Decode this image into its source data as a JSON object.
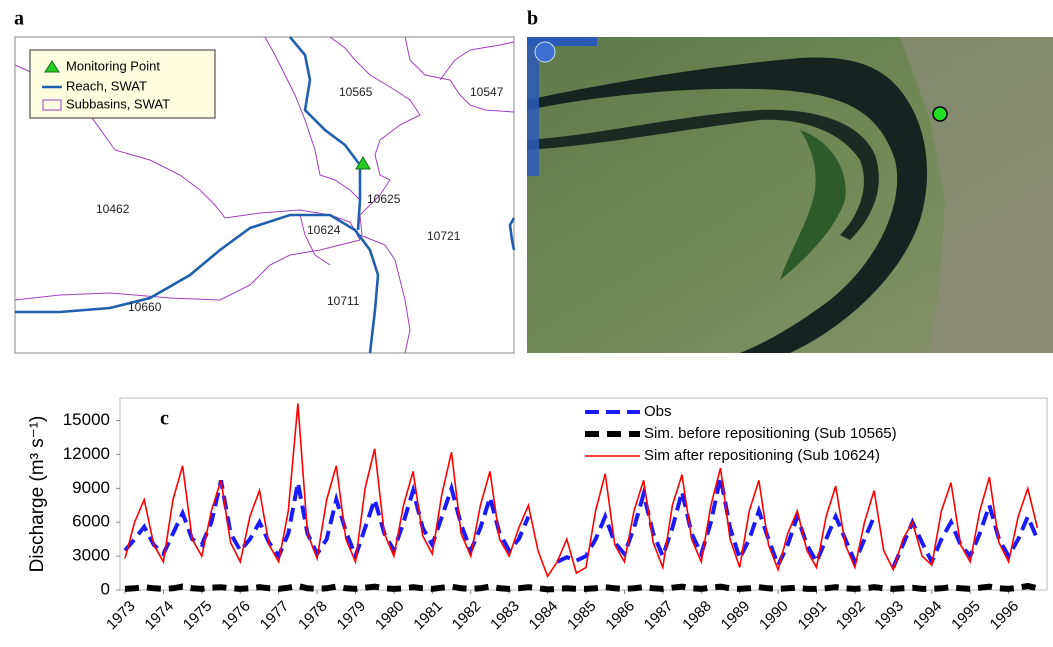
{
  "panel_labels": [
    "a",
    "b",
    "c"
  ],
  "map": {
    "legend": [
      "Monitoring Point",
      "Reach, SWAT",
      "Subbasins, SWAT"
    ],
    "subbasins": [
      "10565",
      "10547",
      "10462",
      "10625",
      "10624",
      "10721",
      "10660",
      "10711"
    ]
  },
  "chart_data": {
    "type": "line",
    "y_label": "Discharge (m³ s⁻¹)",
    "xlim": [
      1973,
      1997
    ],
    "xticks": [
      1973,
      1974,
      1975,
      1976,
      1977,
      1978,
      1979,
      1980,
      1981,
      1982,
      1983,
      1984,
      1985,
      1986,
      1987,
      1988,
      1989,
      1990,
      1991,
      1992,
      1993,
      1994,
      1995,
      1996
    ],
    "ylim": [
      0,
      17000
    ],
    "yticks": [
      0,
      3000,
      6000,
      9000,
      12000,
      15000
    ],
    "x": [
      1973,
      1973.25,
      1973.5,
      1973.75,
      1974,
      1974.25,
      1974.5,
      1974.75,
      1975,
      1975.25,
      1975.5,
      1975.75,
      1976,
      1976.25,
      1976.5,
      1976.75,
      1977,
      1977.25,
      1977.5,
      1977.75,
      1978,
      1978.25,
      1978.5,
      1978.75,
      1979,
      1979.25,
      1979.5,
      1979.75,
      1980,
      1980.25,
      1980.5,
      1980.75,
      1981,
      1981.25,
      1981.5,
      1981.75,
      1982,
      1982.25,
      1982.5,
      1982.75,
      1983,
      1983.25,
      1983.5,
      1983.75,
      1984,
      1984.25,
      1984.5,
      1984.75,
      1985,
      1985.25,
      1985.5,
      1985.75,
      1986,
      1986.25,
      1986.5,
      1986.75,
      1987,
      1987.25,
      1987.5,
      1987.75,
      1988,
      1988.25,
      1988.5,
      1988.75,
      1989,
      1989.25,
      1989.5,
      1989.75,
      1990,
      1990.25,
      1990.5,
      1990.75,
      1991,
      1991.25,
      1991.5,
      1991.75,
      1992,
      1992.25,
      1992.5,
      1992.75,
      1993,
      1993.25,
      1993.5,
      1993.75,
      1994,
      1994.25,
      1994.5,
      1994.75,
      1995,
      1995.25,
      1995.5,
      1995.75,
      1996,
      1996.25,
      1996.5,
      1996.75
    ],
    "series": [
      {
        "name": "Obs",
        "color": "#1a1aff",
        "dash": "dashed",
        "values": [
          3500,
          4500,
          5600,
          4000,
          3200,
          5000,
          6800,
          4500,
          4000,
          6000,
          9700,
          5000,
          3500,
          4500,
          6000,
          4200,
          3000,
          5000,
          9500,
          5000,
          3200,
          4500,
          8000,
          5200,
          3000,
          5500,
          8000,
          5000,
          3500,
          6000,
          8800,
          5500,
          4000,
          6500,
          9000,
          5800,
          3500,
          5500,
          8200,
          5000,
          3500,
          4500,
          6500,
          null,
          null,
          2500,
          2900,
          2600,
          3000,
          4500,
          6500,
          4200,
          3200,
          5500,
          8500,
          5000,
          3000,
          5500,
          8700,
          5000,
          3200,
          6000,
          10000,
          5500,
          2800,
          4500,
          7000,
          4500,
          2200,
          4000,
          6500,
          4000,
          2500,
          4500,
          6500,
          4500,
          2500,
          4500,
          6500,
          null,
          2000,
          4000,
          6000,
          4200,
          2500,
          4500,
          6000,
          4000,
          3000,
          5000,
          7500,
          4500,
          3000,
          4500,
          6500,
          4500
        ]
      },
      {
        "name": "Sim. before repositioning (Sub 10565)",
        "color": "#000000",
        "dash": "dashed",
        "values": [
          100,
          150,
          250,
          150,
          100,
          150,
          300,
          150,
          100,
          200,
          250,
          150,
          100,
          150,
          250,
          150,
          100,
          200,
          350,
          150,
          100,
          150,
          300,
          150,
          100,
          200,
          300,
          150,
          100,
          150,
          250,
          150,
          100,
          200,
          300,
          150,
          100,
          150,
          300,
          150,
          100,
          150,
          250,
          150,
          50,
          100,
          150,
          100,
          100,
          150,
          250,
          150,
          100,
          150,
          250,
          150,
          100,
          200,
          300,
          150,
          100,
          200,
          300,
          150,
          100,
          150,
          250,
          150,
          100,
          150,
          200,
          100,
          100,
          150,
          250,
          150,
          100,
          150,
          250,
          150,
          100,
          150,
          200,
          100,
          100,
          150,
          250,
          150,
          100,
          200,
          300,
          150,
          100,
          200,
          350,
          150
        ]
      },
      {
        "name": "Sim after repositioning (Sub 10624)",
        "color": "#ff0000",
        "dash": "solid",
        "values": [
          2800,
          6000,
          8000,
          4000,
          2500,
          8000,
          11000,
          4500,
          3000,
          7000,
          9700,
          4200,
          2500,
          6500,
          8800,
          4000,
          2500,
          7000,
          16500,
          5000,
          2800,
          8000,
          11000,
          4500,
          2500,
          9000,
          12500,
          5000,
          3000,
          7500,
          10500,
          4800,
          3200,
          8500,
          12200,
          5000,
          3000,
          7500,
          10500,
          4500,
          3000,
          5500,
          7500,
          3500,
          1200,
          2500,
          4500,
          1500,
          2000,
          7000,
          10300,
          4000,
          2500,
          7000,
          9700,
          4200,
          2000,
          7500,
          10200,
          4500,
          2500,
          7500,
          10800,
          4500,
          2000,
          7000,
          9700,
          4000,
          1800,
          5000,
          7000,
          3500,
          2000,
          6500,
          9200,
          4000,
          2000,
          6000,
          8800,
          3500,
          1800,
          4500,
          6000,
          3000,
          2200,
          7000,
          9500,
          4000,
          2500,
          7000,
          10000,
          4200,
          2500,
          6500,
          9000,
          5500
        ]
      }
    ]
  }
}
